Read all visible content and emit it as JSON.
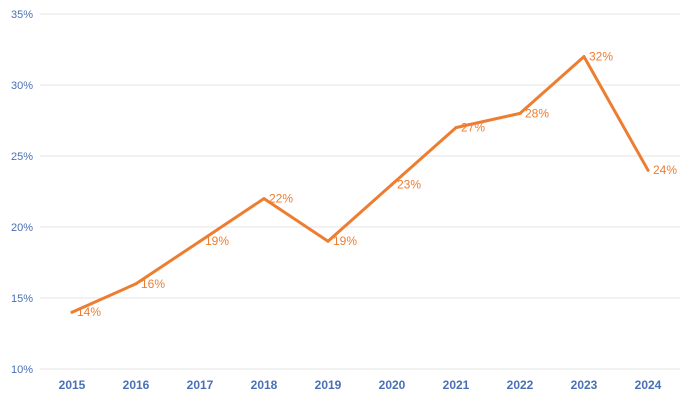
{
  "chart_data": {
    "type": "line",
    "title": "",
    "xlabel": "",
    "ylabel": "",
    "categories": [
      "2015",
      "2016",
      "2017",
      "2018",
      "2019",
      "2020",
      "2021",
      "2022",
      "2023",
      "2024"
    ],
    "series": [
      {
        "name": "",
        "values": [
          14,
          16,
          19,
          22,
          19,
          23,
          27,
          28,
          32,
          24
        ],
        "color": "#ed7d31"
      }
    ],
    "data_labels": [
      "14%",
      "16%",
      "19%",
      "22%",
      "19%",
      "23%",
      "27%",
      "28%",
      "32%",
      "24%"
    ],
    "ylim": [
      10,
      35
    ],
    "y_ticks": [
      10,
      15,
      20,
      25,
      30,
      35
    ],
    "y_tick_labels": [
      "10%",
      "15%",
      "20%",
      "25%",
      "30%",
      "35%"
    ],
    "grid": true,
    "legend": "none",
    "colors": {
      "line": "#ed7d31",
      "axis_text": "#4a6fb5",
      "grid": "#e6e6e6"
    }
  }
}
